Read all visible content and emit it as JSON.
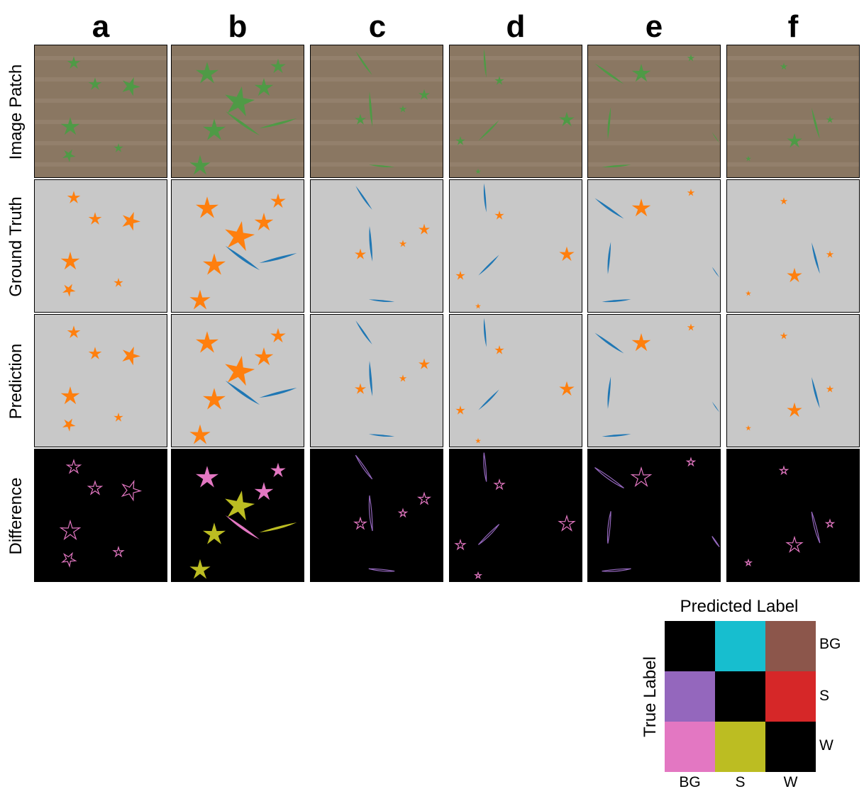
{
  "columns": [
    "a",
    "b",
    "c",
    "d",
    "e",
    "f"
  ],
  "rows": [
    "Image Patch",
    "Ground Truth",
    "Prediction",
    "Difference"
  ],
  "colors": {
    "soil": "#8a7762",
    "plant_green": "#4f9a46",
    "bg_gray": "#c8c8c8",
    "orange": "#ff7f0e",
    "blue": "#1f77b4",
    "black": "#000000",
    "cyan": "#17becf",
    "brown": "#8c564b",
    "purple": "#9467bd",
    "red": "#d62728",
    "pink": "#e377c2",
    "olive": "#bcbd22"
  },
  "legend": {
    "title": "Predicted Label",
    "ylabel": "True Label",
    "row_labels": [
      "BG",
      "S",
      "W"
    ],
    "col_labels": [
      "BG",
      "S",
      "W"
    ],
    "matrix_colors": [
      [
        "#000000",
        "#17becf",
        "#8c564b"
      ],
      [
        "#9467bd",
        "#000000",
        "#d62728"
      ],
      [
        "#e377c2",
        "#bcbd22",
        "#000000"
      ]
    ]
  }
}
